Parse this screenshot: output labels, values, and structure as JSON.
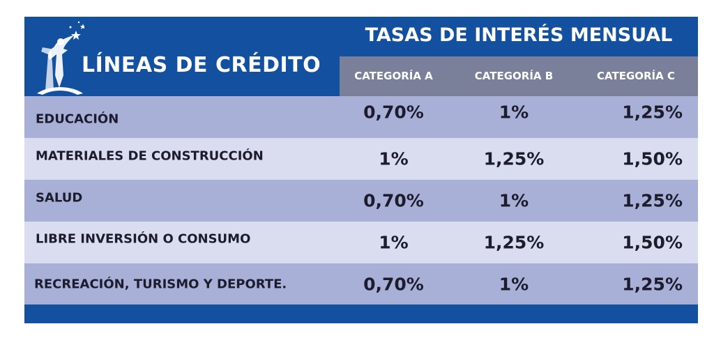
{
  "header": {
    "title": "LÍNEAS DE CRÉDITO",
    "rates_title": "TASAS DE INTERÉS MENSUAL",
    "categories": [
      "CATEGORÍA A",
      "CATEGORÍA B",
      "CATEGORÍA C"
    ]
  },
  "rows": [
    {
      "label": "EDUCACIÓN",
      "a": "0,70%",
      "b": "1%",
      "c": "1,25%"
    },
    {
      "label": "MATERIALES DE CONSTRUCCIÓN",
      "a": "1%",
      "b": "1,25%",
      "c": "1,50%"
    },
    {
      "label": "SALUD",
      "a": "0,70%",
      "b": "1%",
      "c": "1,25%"
    },
    {
      "label": "LIBRE INVERSIÓN O CONSUMO",
      "a": "1%",
      "b": "1,25%",
      "c": "1,50%"
    },
    {
      "label": "RECREACIÓN, TURISMO Y DEPORTE.",
      "a": "0,70%",
      "b": "1%",
      "c": "1,25%"
    }
  ],
  "colors": {
    "header_blue": "#1450a0",
    "category_gray": "#7a7f9a",
    "row_dark": "#a8b0d8",
    "row_light": "#d9ddef",
    "text_dark": "#1c1c2c"
  },
  "icons": {
    "logo": "figure-with-stars-logo-icon"
  }
}
